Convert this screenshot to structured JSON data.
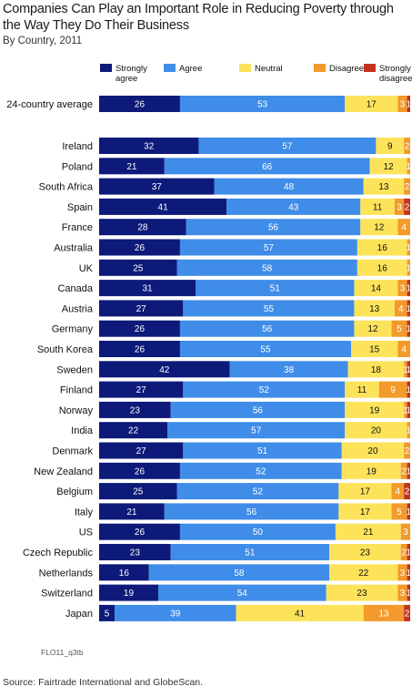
{
  "title": "Companies Can Play an Important Role in Reducing Poverty through the Way They Do Their Business",
  "subtitle": "By Country, 2011",
  "code": "FLO11_q3tb",
  "source": "Source: Fairtrade International and GlobeScan.",
  "chart_data": {
    "type": "bar",
    "orientation": "horizontal",
    "stacked": true,
    "title": "Companies Can Play an Important Role in Reducing Poverty through the Way They Do Their Business",
    "subtitle": "By Country, 2011",
    "legend_position": "top",
    "categories": [
      "24-country average",
      "Ireland",
      "Poland",
      "South Africa",
      "Spain",
      "France",
      "Australia",
      "UK",
      "Canada",
      "Austria",
      "Germany",
      "South Korea",
      "Sweden",
      "Finland",
      "Norway",
      "India",
      "Denmark",
      "New Zealand",
      "Belgium",
      "Italy",
      "US",
      "Czech Republic",
      "Netherlands",
      "Switzerland",
      "Japan"
    ],
    "series": [
      {
        "name": "Strongly agree",
        "color": "#0d1a7a",
        "label_color": "#ffffff",
        "values": [
          26,
          32,
          21,
          37,
          41,
          28,
          26,
          25,
          31,
          27,
          26,
          26,
          42,
          27,
          23,
          22,
          27,
          26,
          25,
          21,
          26,
          23,
          16,
          19,
          5
        ]
      },
      {
        "name": "Agree",
        "color": "#3f8de8",
        "label_color": "#ffffff",
        "values": [
          53,
          57,
          66,
          48,
          43,
          56,
          57,
          58,
          51,
          55,
          56,
          55,
          38,
          52,
          56,
          57,
          51,
          52,
          52,
          56,
          50,
          51,
          58,
          54,
          39
        ]
      },
      {
        "name": "Neutral",
        "color": "#fde35a",
        "label_color": "#111111",
        "values": [
          17,
          9,
          12,
          13,
          11,
          12,
          16,
          16,
          14,
          13,
          12,
          15,
          18,
          11,
          19,
          20,
          20,
          19,
          17,
          17,
          21,
          23,
          22,
          23,
          41
        ]
      },
      {
        "name": "Disagree",
        "color": "#f29a2c",
        "label_color": "#ffffff",
        "values": [
          3,
          2,
          1,
          2,
          3,
          4,
          1,
          1,
          3,
          4,
          5,
          4,
          1,
          9,
          1,
          1,
          2,
          2,
          4,
          5,
          3,
          2,
          3,
          3,
          13
        ]
      },
      {
        "name": "Strongly disagree",
        "color": "#c3321c",
        "label_color": "#ffffff",
        "values": [
          1,
          0,
          0,
          0,
          2,
          0,
          0,
          0,
          1,
          1,
          1,
          0,
          1,
          1,
          1,
          0,
          0,
          1,
          2,
          1,
          0,
          1,
          1,
          1,
          2
        ]
      }
    ],
    "legend_labels": [
      "Strongly\nagree",
      "Agree",
      "Neutral",
      "Disagree",
      "Strongly\ndisagree"
    ],
    "xlim": [
      0,
      100
    ]
  }
}
